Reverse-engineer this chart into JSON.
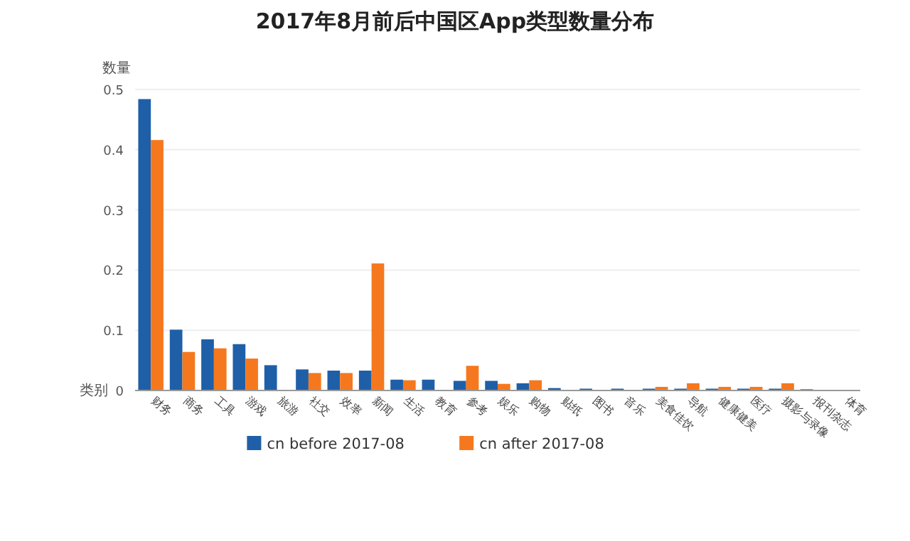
{
  "chart_data": {
    "type": "bar",
    "title": "2017年8月前后中国区App类型数量分布",
    "xlabel": "类别",
    "ylabel": "数量",
    "categories": [
      "财务",
      "商务",
      "工具",
      "游戏",
      "旅游",
      "社交",
      "效率",
      "新闻",
      "生活",
      "教育",
      "参考",
      "娱乐",
      "购物",
      "贴纸",
      "图书",
      "音乐",
      "美食佳饮",
      "导航",
      "健康健美",
      "医疗",
      "摄影与录像",
      "报刊杂志",
      "体育"
    ],
    "series": [
      {
        "name": "cn before 2017-08",
        "color": "#1f5fa8",
        "values": [
          0.484,
          0.101,
          0.085,
          0.077,
          0.042,
          0.035,
          0.033,
          0.033,
          0.018,
          0.018,
          0.016,
          0.016,
          0.012,
          0.004,
          0.003,
          0.003,
          0.003,
          0.003,
          0.003,
          0.003,
          0.003,
          0.002,
          null
        ]
      },
      {
        "name": "cn after 2017-08",
        "color": "#f5781e",
        "values": [
          0.416,
          0.064,
          0.07,
          0.053,
          0,
          0.029,
          0.029,
          0.211,
          0.017,
          0,
          0.041,
          0.011,
          0.017,
          0,
          0,
          0,
          0.006,
          0.012,
          0.006,
          0.006,
          0.012,
          0,
          null
        ]
      }
    ],
    "ylim": [
      0,
      0.5
    ],
    "yticks": [
      0,
      0.1,
      0.2,
      0.3,
      0.4,
      0.5
    ],
    "grid": "y",
    "legend": "bottom"
  }
}
